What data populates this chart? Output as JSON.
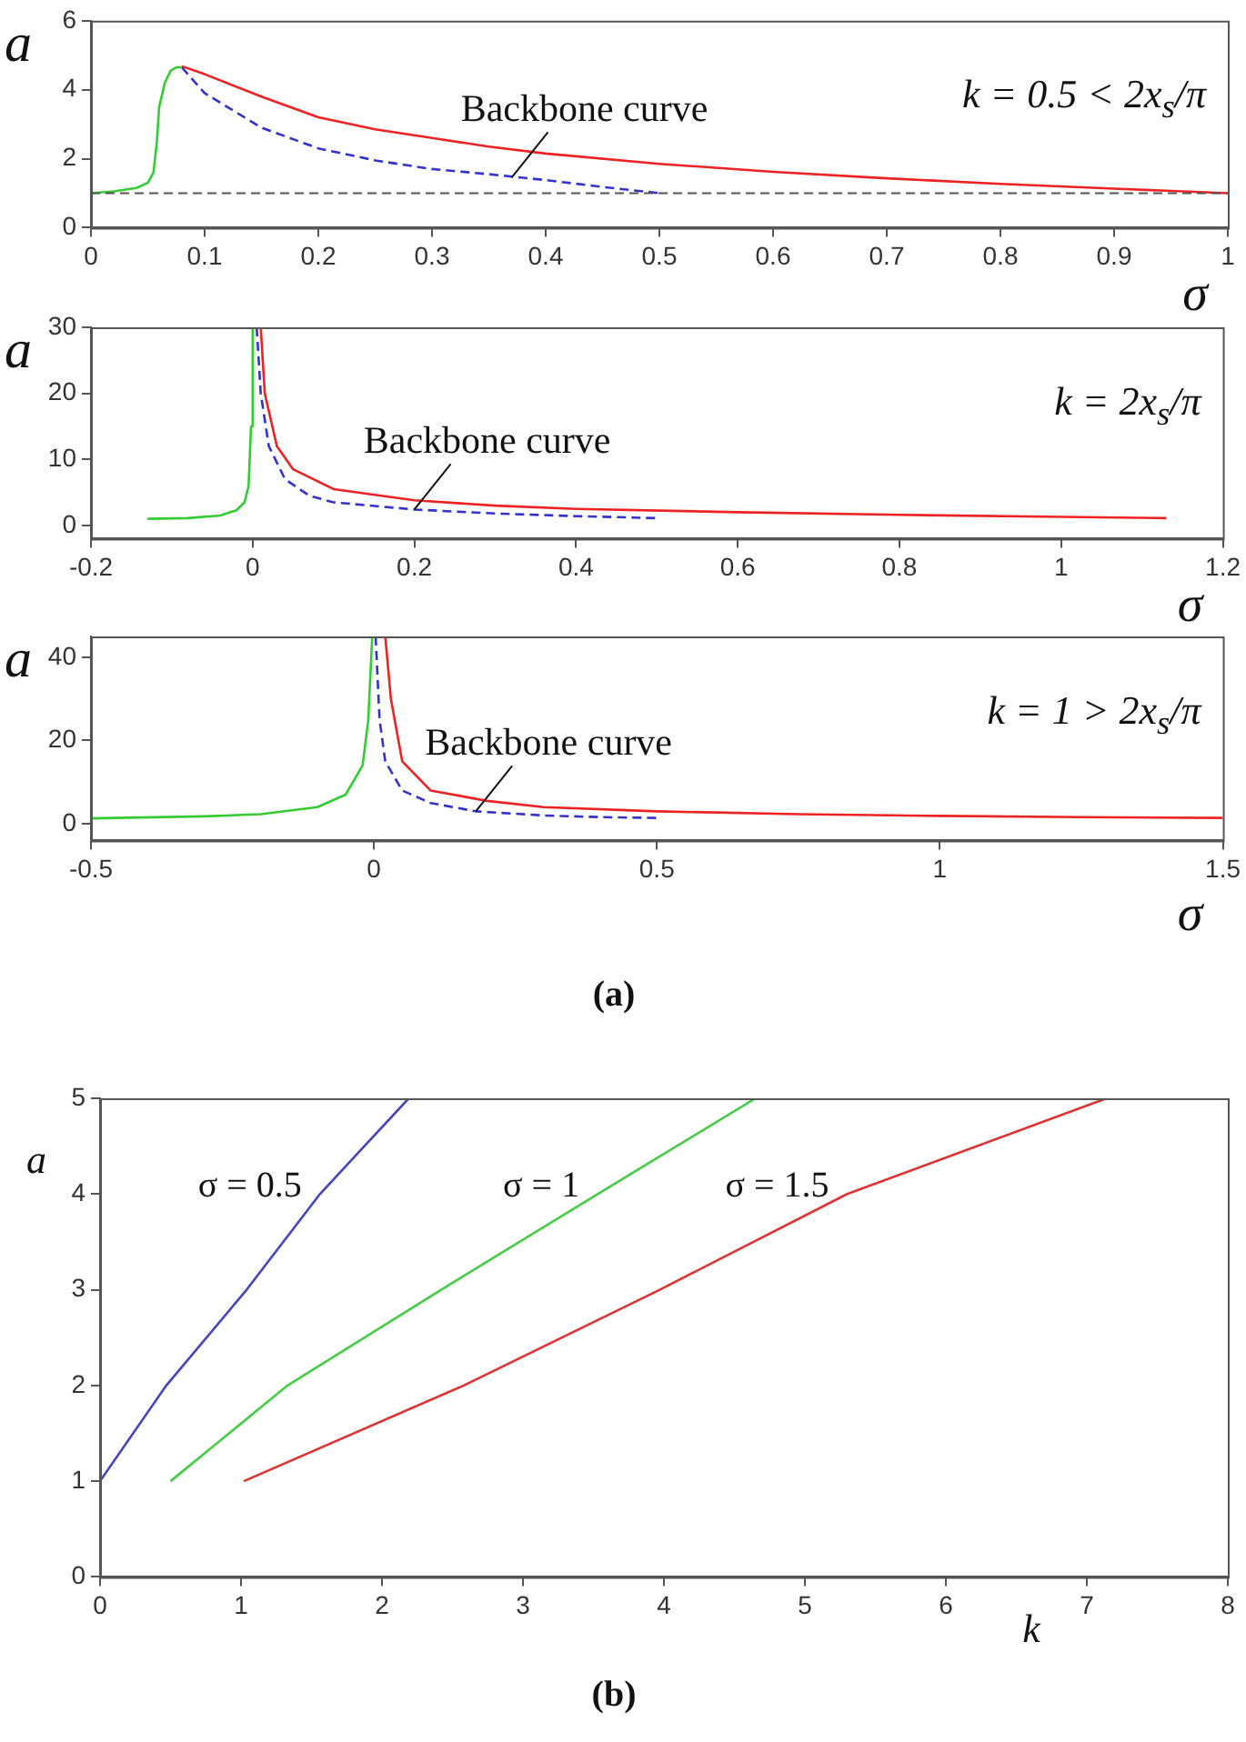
{
  "chart_data": [
    {
      "type": "line",
      "xlabel": "σ",
      "ylabel": "a",
      "xlim": [
        0,
        1
      ],
      "xticks": [
        0,
        0.1,
        0.2,
        0.3,
        0.4,
        0.5,
        0.6,
        0.7,
        0.8,
        0.9,
        1
      ],
      "ylim": [
        0,
        6
      ],
      "yticks": [
        0,
        2,
        4,
        6
      ],
      "legend": false,
      "ref_lines": [
        {
          "axis": "y",
          "value": 1,
          "color": "#555555",
          "line_style": "dashed"
        }
      ],
      "annotations": [
        "k = 0.5 < 2x$_{s}$/π",
        {
          "text": "Backbone curve",
          "x": 0.37,
          "y": 1.45
        }
      ],
      "series": [
        {
          "color": "#33cc33",
          "x": [
            0,
            0.02,
            0.04,
            0.05,
            0.055,
            0.058,
            0.06,
            0.065,
            0.07,
            0.075,
            0.08
          ],
          "values": [
            1,
            1.05,
            1.15,
            1.3,
            1.6,
            2.5,
            3.5,
            4.2,
            4.55,
            4.65,
            4.65
          ]
        },
        {
          "color": "#ee2222",
          "x": [
            0.08,
            0.1,
            0.15,
            0.2,
            0.25,
            0.3,
            0.35,
            0.4,
            0.5,
            0.6,
            0.7,
            0.8,
            0.9,
            1
          ],
          "values": [
            4.68,
            4.45,
            3.8,
            3.2,
            2.85,
            2.6,
            2.35,
            2.15,
            1.85,
            1.62,
            1.43,
            1.27,
            1.13,
            1
          ]
        },
        {
          "color": "#3333cc",
          "line_style": "dashed",
          "x": [
            0.08,
            0.1,
            0.15,
            0.2,
            0.25,
            0.3,
            0.35,
            0.4,
            0.45,
            0.5
          ],
          "values": [
            4.65,
            3.9,
            2.9,
            2.3,
            1.95,
            1.7,
            1.55,
            1.38,
            1.18,
            1
          ]
        }
      ]
    },
    {
      "type": "line",
      "xlabel": "σ",
      "ylabel": "a",
      "xlim": [
        -0.2,
        1.2
      ],
      "xticks": [
        -0.2,
        0,
        0.2,
        0.4,
        0.6,
        0.8,
        1,
        1.2
      ],
      "ylim": [
        -2,
        30
      ],
      "yticks": [
        0,
        10,
        20,
        30
      ],
      "legend": false,
      "annotations": [
        "k = 2x$_{s}$/π",
        {
          "text": "Backbone curve",
          "x": 0.2,
          "y": 2.4
        }
      ],
      "series": [
        {
          "color": "#33cc33",
          "x": [
            -0.13,
            -0.08,
            -0.04,
            -0.02,
            -0.01,
            -0.005,
            -0.002,
            0
          ],
          "values": [
            1,
            1.1,
            1.5,
            2.3,
            3.5,
            6,
            15,
            30
          ]
        },
        {
          "color": "#ee2222",
          "x": [
            0.01,
            0.015,
            0.03,
            0.05,
            0.1,
            0.2,
            0.3,
            0.4,
            0.6,
            0.8,
            1,
            1.13
          ],
          "values": [
            30,
            20,
            12,
            8.5,
            5.5,
            3.8,
            3,
            2.5,
            2,
            1.6,
            1.3,
            1.1
          ]
        },
        {
          "color": "#3333cc",
          "line_style": "dashed",
          "x": [
            0.005,
            0.01,
            0.02,
            0.04,
            0.07,
            0.1,
            0.2,
            0.3,
            0.4,
            0.5
          ],
          "values": [
            30,
            20,
            12,
            7,
            4.5,
            3.5,
            2.4,
            1.8,
            1.4,
            1.1
          ]
        }
      ]
    },
    {
      "type": "line",
      "title": "(a)",
      "xlabel": "σ",
      "ylabel": "a",
      "xlim": [
        -0.5,
        1.5
      ],
      "xticks": [
        -0.5,
        0,
        0.5,
        1,
        1.5
      ],
      "ylim": [
        -4,
        45
      ],
      "yticks": [
        0,
        20,
        40
      ],
      "legend": false,
      "annotations": [
        "k = 1 > 2x$_{s}$/π",
        {
          "text": "Backbone curve",
          "x": 0.18,
          "y": 3
        }
      ],
      "series": [
        {
          "color": "#33cc33",
          "x": [
            -0.5,
            -0.3,
            -0.2,
            -0.1,
            -0.05,
            -0.02,
            -0.01,
            -0.003
          ],
          "values": [
            1.3,
            1.8,
            2.3,
            4,
            7,
            14,
            25,
            45
          ]
        },
        {
          "color": "#ee2222",
          "x": [
            0.02,
            0.03,
            0.05,
            0.1,
            0.2,
            0.3,
            0.5,
            0.75,
            1,
            1.25,
            1.5
          ],
          "values": [
            45,
            30,
            15,
            8,
            5.5,
            4,
            3,
            2.3,
            1.9,
            1.6,
            1.4
          ]
        },
        {
          "color": "#3333cc",
          "line_style": "dashed",
          "x": [
            0.003,
            0.01,
            0.02,
            0.05,
            0.1,
            0.18,
            0.3,
            0.4,
            0.5
          ],
          "values": [
            45,
            25,
            15,
            8,
            5,
            3,
            2,
            1.6,
            1.4
          ]
        }
      ]
    },
    {
      "type": "line",
      "title": "(b)",
      "xlabel": "k",
      "ylabel": "a",
      "xlim": [
        0,
        8
      ],
      "xticks": [
        0,
        1,
        2,
        3,
        4,
        5,
        6,
        7,
        8
      ],
      "ylim": [
        0,
        5
      ],
      "yticks": [
        0,
        1,
        2,
        3,
        4,
        5
      ],
      "legend": false,
      "series": [
        {
          "name": "σ = 0.5",
          "color": "#4444bb",
          "x": [
            0,
            0.47,
            1.04,
            1.56,
            2.19
          ],
          "values": [
            1,
            2,
            3,
            4,
            5
          ]
        },
        {
          "name": "σ = 1",
          "color": "#44cc44",
          "x": [
            0.5,
            1.33,
            2.42,
            3.53,
            4.65
          ],
          "values": [
            1,
            2,
            3,
            4,
            5
          ]
        },
        {
          "name": "σ = 1.5",
          "color": "#dd3333",
          "x": [
            1.02,
            2.58,
            3.97,
            5.3,
            7.14
          ],
          "values": [
            1,
            2,
            3,
            4,
            5
          ]
        }
      ]
    }
  ]
}
